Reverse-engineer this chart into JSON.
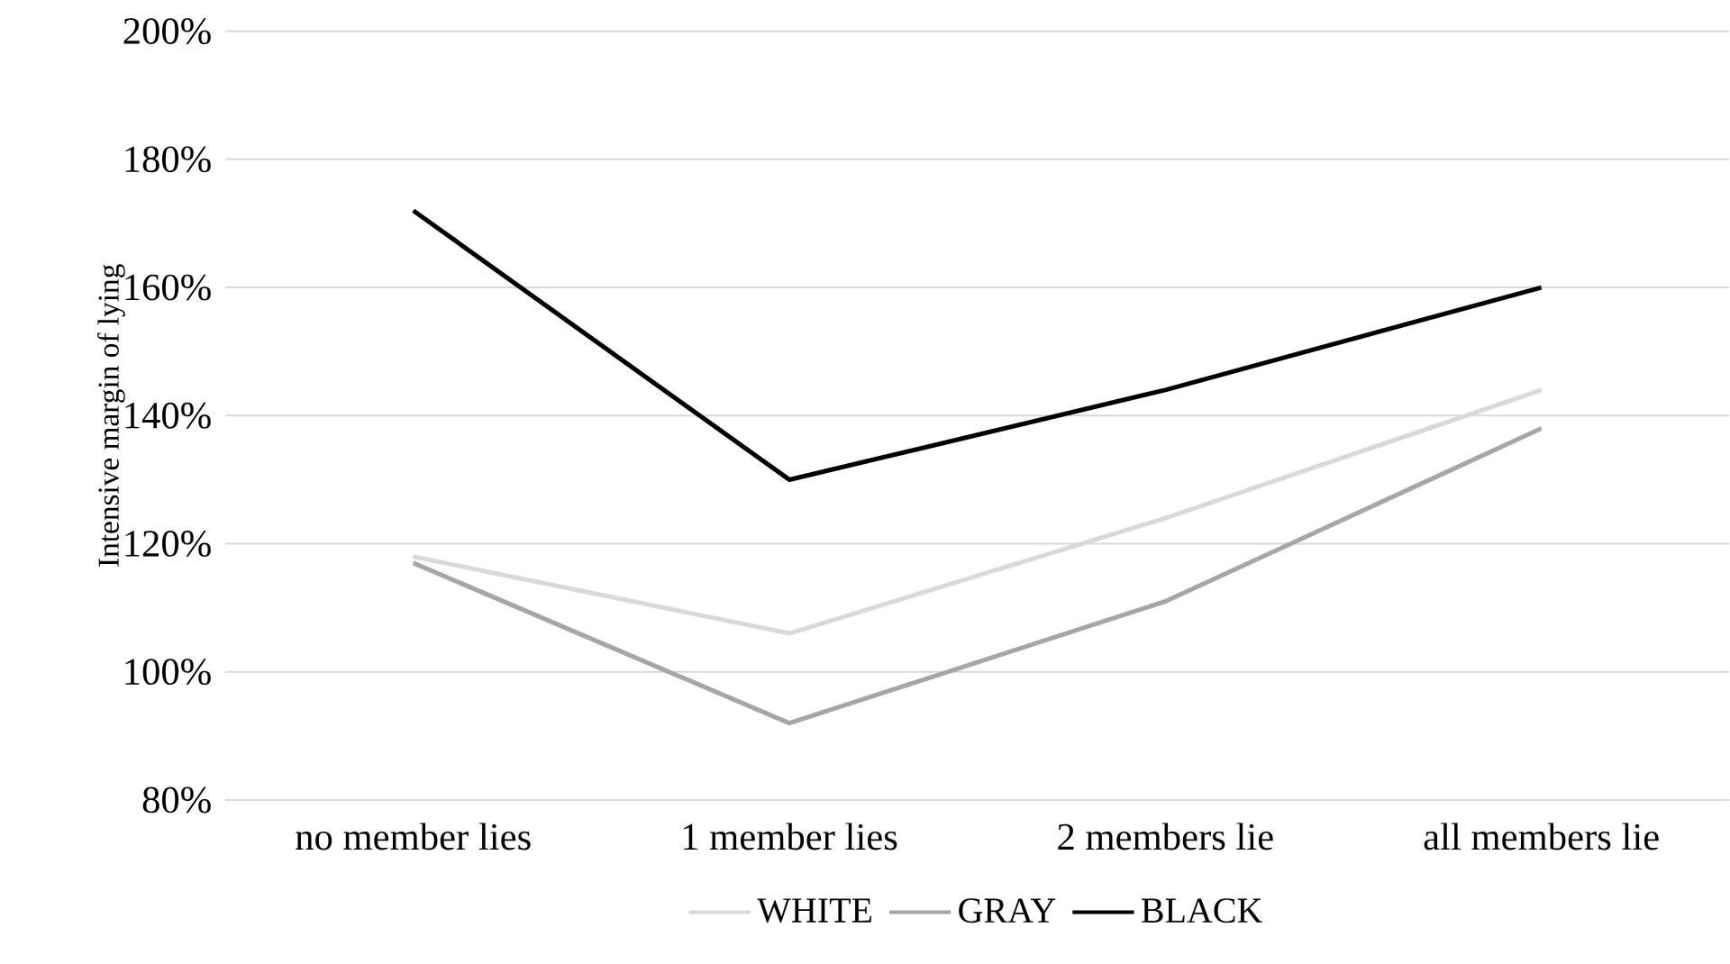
{
  "chart_data": {
    "type": "line",
    "ylabel": "Intensive margin of lying",
    "categories": [
      "no member lies",
      "1 member lies",
      "2 members lie",
      "all members lie"
    ],
    "series": [
      {
        "name": "WHITE",
        "color": "#d9d9d9",
        "values": [
          118,
          106,
          124,
          144
        ]
      },
      {
        "name": "GRAY",
        "color": "#a6a6a6",
        "values": [
          117,
          92,
          111,
          138
        ]
      },
      {
        "name": "BLACK",
        "color": "#000000",
        "values": [
          172,
          130,
          144,
          160
        ]
      }
    ],
    "ylim": [
      80,
      200
    ],
    "yticks": [
      {
        "value": 80,
        "label": "80%"
      },
      {
        "value": 100,
        "label": "100%"
      },
      {
        "value": 120,
        "label": "120%"
      },
      {
        "value": 140,
        "label": "140%"
      },
      {
        "value": 160,
        "label": "160%"
      },
      {
        "value": 180,
        "label": "180%"
      },
      {
        "value": 200,
        "label": "200%"
      }
    ],
    "grid": "y",
    "legend": "bottom",
    "marker": "none",
    "line_style": "solid"
  }
}
